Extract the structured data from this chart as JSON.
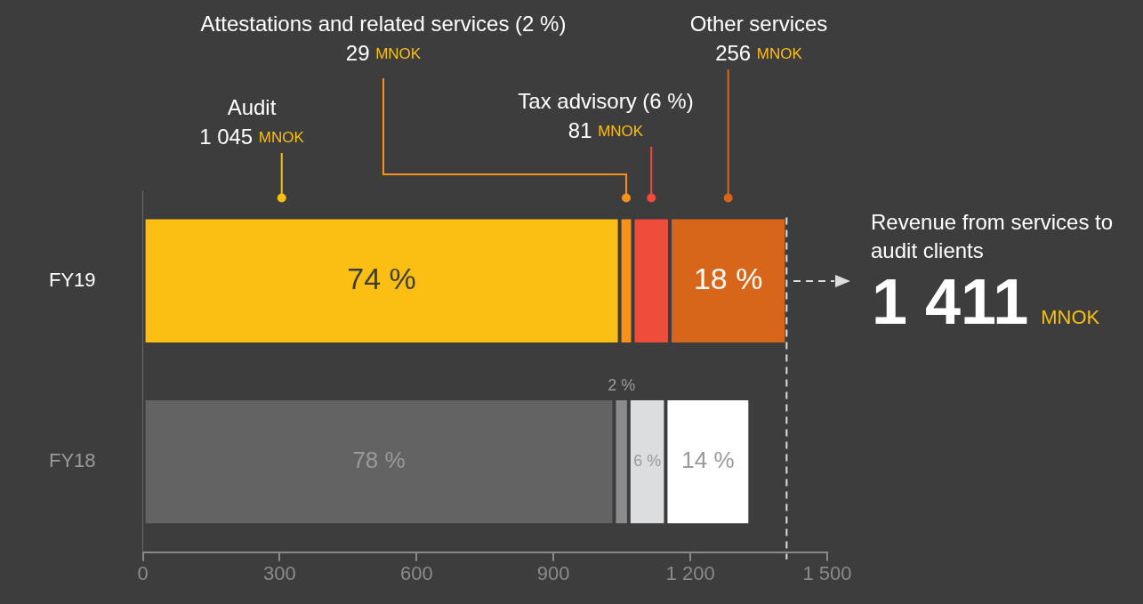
{
  "chart_data": {
    "type": "bar",
    "orientation": "horizontal",
    "stacked": true,
    "categories": [
      "FY19",
      "FY18"
    ],
    "series": [
      {
        "colors": [
          "#fbbe12",
          "#636364"
        ],
        "values": [
          1045,
          1033
        ]
      },
      {
        "colors": [
          "#f5921b",
          "#8b8b8e"
        ],
        "values": [
          29,
          32
        ]
      },
      {
        "colors": [
          "#ef4c3b",
          "#dcdddf"
        ],
        "values": [
          81,
          81
        ]
      },
      {
        "colors": [
          "#d7661b",
          "#ffffff"
        ],
        "values": [
          256,
          185
        ]
      }
    ],
    "xlim": [
      0,
      1500
    ],
    "xticks": [
      0,
      300,
      600,
      900,
      {
        "value": 1200,
        "label": "1 200"
      },
      {
        "value": 1500,
        "label": "1 500"
      }
    ],
    "ref_lines": [
      {
        "axis": "x",
        "value": 1411,
        "color": "#dddddd",
        "line_style": "dashed"
      }
    ],
    "totals": [
      "1 411 MNOK",
      null
    ],
    "annotations": [
      "Audit",
      "1 045 MNOK",
      "Attestations and related services (2 %)",
      "29 MNOK",
      "Tax advisory (6 %)",
      "81 MNOK",
      "Other services",
      "256 MNOK",
      "Revenue from services to audit clients",
      "74 %",
      "78 %",
      "2 %",
      "6 %",
      "18 %",
      "14 %"
    ],
    "grid": false,
    "legend": false
  }
}
